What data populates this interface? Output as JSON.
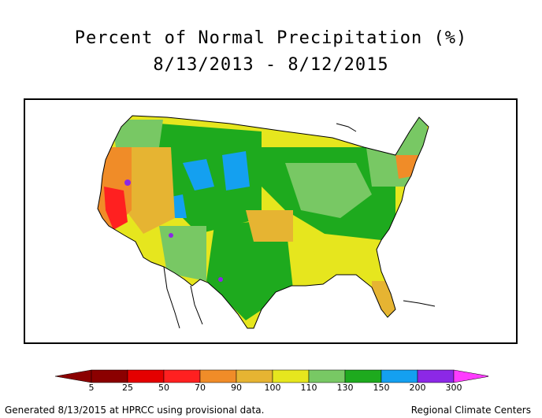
{
  "title": "Percent of Normal Precipitation (%)",
  "date_range": "8/13/2013 - 8/12/2015",
  "legend": {
    "bins": [
      {
        "label": "5",
        "color": "#8b0000"
      },
      {
        "label": "25",
        "color": "#e40000"
      },
      {
        "label": "50",
        "color": "#ff2020"
      },
      {
        "label": "70",
        "color": "#f08c28"
      },
      {
        "label": "90",
        "color": "#e6b432"
      },
      {
        "label": "100",
        "color": "#e6e61e"
      },
      {
        "label": "110",
        "color": "#78c864"
      },
      {
        "label": "130",
        "color": "#1eaa1e"
      },
      {
        "label": "150",
        "color": "#14a0f0"
      },
      {
        "label": "200",
        "color": "#8c28e6"
      },
      {
        "label": "300",
        "color": "#b41edc"
      }
    ],
    "overflow_color": "#ff3cff",
    "underflow_color": "#8b0000"
  },
  "footer": {
    "left": "Generated 8/13/2015 at HPRCC using provisional data.",
    "right": "Regional Climate Centers"
  },
  "map_regions": [
    {
      "name": "west-coast",
      "color": "#f08c28"
    },
    {
      "name": "california-central",
      "color": "#ff2020"
    },
    {
      "name": "great-basin",
      "color": "#e6b432"
    },
    {
      "name": "northern-rockies",
      "color": "#1eaa1e"
    },
    {
      "name": "wyoming-montana",
      "color": "#14a0f0"
    },
    {
      "name": "plains",
      "color": "#e6e61e"
    },
    {
      "name": "midwest",
      "color": "#1eaa1e"
    },
    {
      "name": "southeast",
      "color": "#e6e61e"
    },
    {
      "name": "northeast",
      "color": "#78c864"
    },
    {
      "name": "texas",
      "color": "#1eaa1e"
    },
    {
      "name": "florida",
      "color": "#e6b432"
    }
  ]
}
